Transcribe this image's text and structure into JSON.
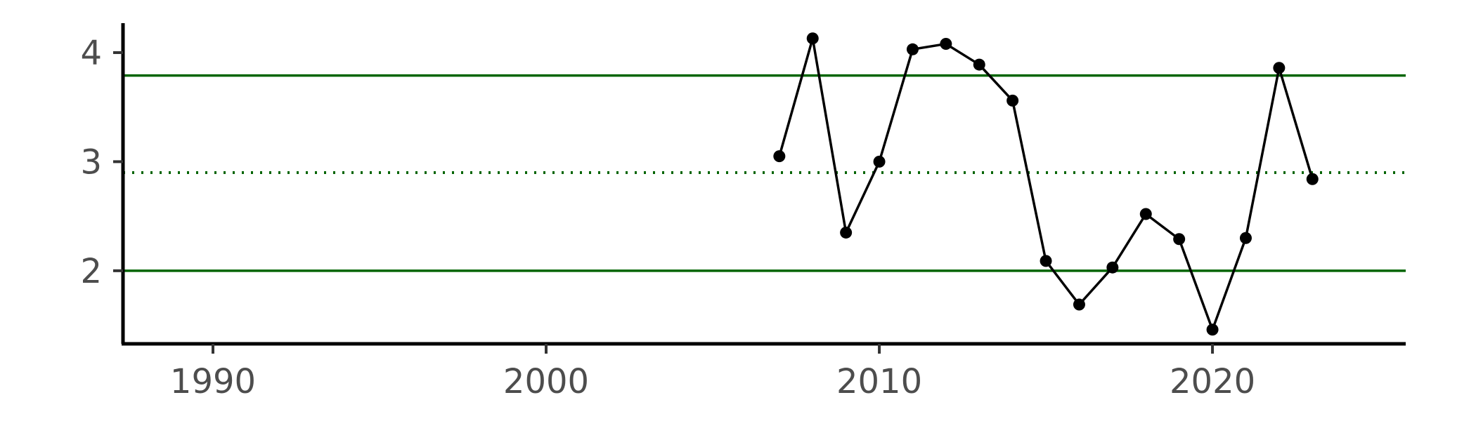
{
  "chart_data": {
    "type": "line",
    "title": "",
    "xlabel": "",
    "ylabel": "",
    "xlim": [
      1987.3,
      2025.8
    ],
    "ylim": [
      1.33,
      4.27
    ],
    "x_ticks": [
      1990,
      2000,
      2010,
      2020
    ],
    "y_ticks": [
      2,
      3,
      4
    ],
    "grid": false,
    "legend": "none",
    "series": [
      {
        "x": [
          2007,
          2008,
          2009,
          2010,
          2011,
          2012,
          2013,
          2014,
          2015,
          2016,
          2017,
          2018,
          2019,
          2020,
          2021,
          2022,
          2023
        ],
        "values": [
          3.05,
          4.13,
          2.35,
          3.0,
          4.03,
          4.08,
          3.89,
          3.56,
          2.09,
          1.69,
          2.03,
          2.52,
          2.29,
          1.46,
          2.3,
          3.86,
          2.84
        ],
        "color": "#000000"
      }
    ],
    "reference_lines": [
      {
        "y": 3.79,
        "style": "solid",
        "color": "#006400"
      },
      {
        "y": 2.9,
        "style": "dotted",
        "color": "#006400"
      },
      {
        "y": 2.0,
        "style": "solid",
        "color": "#006400"
      }
    ]
  }
}
